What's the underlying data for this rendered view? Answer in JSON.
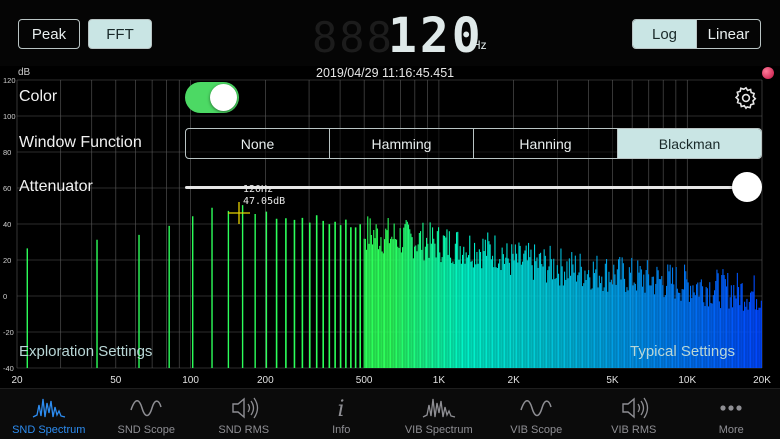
{
  "header": {
    "mode_buttons": [
      {
        "label": "Peak",
        "active": false
      },
      {
        "label": "FFT",
        "active": true
      }
    ],
    "frequency_ghost": "888",
    "frequency_value": "120",
    "frequency_unit": "Hz",
    "scale_buttons": [
      {
        "label": "Log",
        "active": true
      },
      {
        "label": "Linear",
        "active": false
      }
    ]
  },
  "plot": {
    "y_unit": "dB",
    "timestamp": "2019/04/29 11:16:45.451",
    "peak_marker": {
      "freq_label": "120Hz",
      "level_label": "47.05dB",
      "freq": 120,
      "db": 47.05
    },
    "y_ticks": [
      120,
      100,
      80,
      60,
      40,
      20,
      0,
      -20,
      -40
    ],
    "x_ticks": [
      {
        "value": 20,
        "label": "20"
      },
      {
        "value": 50,
        "label": "50"
      },
      {
        "value": 100,
        "label": "100"
      },
      {
        "value": 200,
        "label": "200"
      },
      {
        "value": 500,
        "label": "500"
      },
      {
        "value": 1000,
        "label": "1K"
      },
      {
        "value": 2000,
        "label": "2K"
      },
      {
        "value": 5000,
        "label": "5K"
      },
      {
        "value": 10000,
        "label": "10K"
      },
      {
        "value": 20000,
        "label": "20K"
      }
    ],
    "x_range": [
      20,
      20000
    ],
    "y_range": [
      -40,
      120
    ],
    "colors": {
      "low": "#22ff66",
      "mid": "#00e8c0",
      "high": "#1a55ff",
      "grid": "#5a5a5a"
    }
  },
  "overlay": {
    "color_label": "Color",
    "color_on": true,
    "window_label": "Window Function",
    "window_options": [
      {
        "label": "None",
        "active": false
      },
      {
        "label": "Hamming",
        "active": false
      },
      {
        "label": "Hanning",
        "active": false
      },
      {
        "label": "Blackman",
        "active": true
      }
    ],
    "attenuator_label": "Attenuator",
    "attenuator_level": 1.0,
    "exploration_label": "Exploration Settings",
    "typical_label": "Typical Settings"
  },
  "tabs": [
    {
      "label": "SND Spectrum",
      "icon": "spectrum-icon",
      "active": true
    },
    {
      "label": "SND Scope",
      "icon": "wave-icon",
      "active": false
    },
    {
      "label": "SND RMS",
      "icon": "speaker-icon",
      "active": false
    },
    {
      "label": "Info",
      "icon": "info-icon",
      "active": false
    },
    {
      "label": "VIB Spectrum",
      "icon": "spectrum-icon",
      "active": false
    },
    {
      "label": "VIB Scope",
      "icon": "wave-icon",
      "active": false
    },
    {
      "label": "VIB RMS",
      "icon": "speaker-icon",
      "active": false
    },
    {
      "label": "More",
      "icon": "more-icon",
      "active": false
    }
  ]
}
